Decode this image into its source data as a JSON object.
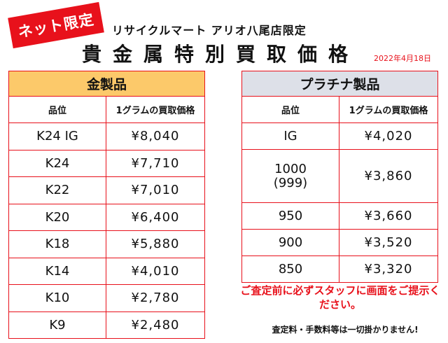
{
  "badge": "ネット限定",
  "store_line": "リサイクルマート アリオ八尾店限定",
  "title": "貴金属特別買取価格",
  "date": "2022年4月18日",
  "gold": {
    "header": "金製品",
    "col_grade": "品位",
    "col_price": "1グラムの買取価格",
    "rows": [
      {
        "grade": "K24 IG",
        "price": "¥8,040"
      },
      {
        "grade": "K24",
        "price": "¥7,710"
      },
      {
        "grade": "K22",
        "price": "¥7,010"
      },
      {
        "grade": "K20",
        "price": "¥6,400"
      },
      {
        "grade": "K18",
        "price": "¥5,880"
      },
      {
        "grade": "K14",
        "price": "¥4,010"
      },
      {
        "grade": "K10",
        "price": "¥2,780"
      },
      {
        "grade": "K9",
        "price": "¥2,480"
      }
    ]
  },
  "platinum": {
    "header": "プラチナ製品",
    "col_grade": "品位",
    "col_price": "1グラムの買取価格",
    "rows": [
      {
        "grade": "IG",
        "grade_sub": "",
        "price": "¥4,020"
      },
      {
        "grade": "1000",
        "grade_sub": "(999)",
        "price": "¥3,860"
      },
      {
        "grade": "950",
        "grade_sub": "",
        "price": "¥3,660"
      },
      {
        "grade": "900",
        "grade_sub": "",
        "price": "¥3,520"
      },
      {
        "grade": "850",
        "grade_sub": "",
        "price": "¥3,320"
      }
    ]
  },
  "notice": "ご査定前に必ずスタッフに画面をご提示ください。",
  "fee_note": "査定料・手数料等は一切掛かりません!"
}
